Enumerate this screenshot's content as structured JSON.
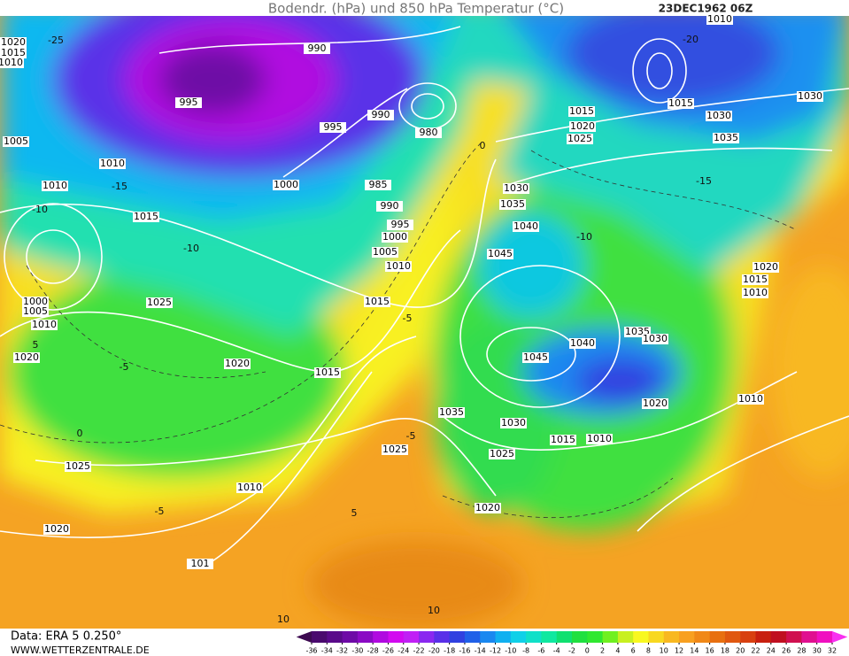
{
  "header": {
    "title": "Bodendr. (hPa) und 850 hPa Temperatur (°C)",
    "date": "23DEC1962 06Z"
  },
  "footer": {
    "source": "Data: ERA 5 0.250°",
    "site": "WWW.WETTERZENTRALE.DE"
  },
  "isobar_labels": [
    "990",
    "995",
    "995",
    "990",
    "980",
    "1000",
    "985",
    "990",
    "995",
    "1000",
    "1005",
    "1010",
    "1015",
    "1015",
    "1020",
    "1025",
    "1015",
    "1010",
    "1010",
    "1005",
    "1000",
    "1005",
    "1010",
    "1020",
    "1025",
    "1020",
    "1010",
    "1025",
    "1020",
    "1035",
    "1030",
    "1025",
    "1015",
    "1010",
    "1045",
    "1040",
    "1035",
    "1030",
    "1020",
    "1010",
    "1045",
    "1040",
    "1035",
    "1030",
    "1025",
    "1020",
    "1015",
    "1015",
    "1030",
    "1035",
    "1030",
    "1020",
    "1015",
    "1010",
    "1010",
    "1020",
    "1015",
    "1010",
    "101"
  ],
  "temperature_labels": [
    "-10",
    "-15",
    "-10",
    "-5",
    "0",
    "-5",
    "5",
    "10",
    "-5",
    "-5",
    "0",
    "-15",
    "-10",
    "-20",
    "-25",
    "5",
    "10"
  ],
  "colorbar": {
    "labels": [
      -36,
      -34,
      -32,
      -30,
      -28,
      -26,
      -24,
      -22,
      -20,
      -18,
      -16,
      -14,
      -12,
      -10,
      -8,
      -6,
      -4,
      -2,
      0,
      2,
      4,
      6,
      8,
      10,
      12,
      14,
      16,
      18,
      20,
      22,
      24,
      26,
      28,
      30,
      32
    ],
    "colors": [
      "#3c0a50",
      "#4a0a6e",
      "#5a0a8a",
      "#6e0aa6",
      "#8a0ac4",
      "#b00ae0",
      "#d20af0",
      "#c020f5",
      "#8a28f0",
      "#5a30e8",
      "#3040e0",
      "#2060e8",
      "#1a88f0",
      "#10b0f0",
      "#10d0e8",
      "#10e0c8",
      "#10e8a0",
      "#10e070",
      "#20e040",
      "#30e830",
      "#70f020",
      "#c8f020",
      "#f8f820",
      "#f8d820",
      "#f8b820",
      "#f8a020",
      "#f08818",
      "#e87010",
      "#e05810",
      "#d84010",
      "#c82010",
      "#c01020",
      "#d01050",
      "#e01090",
      "#f010c0",
      "#f830f0"
    ]
  }
}
